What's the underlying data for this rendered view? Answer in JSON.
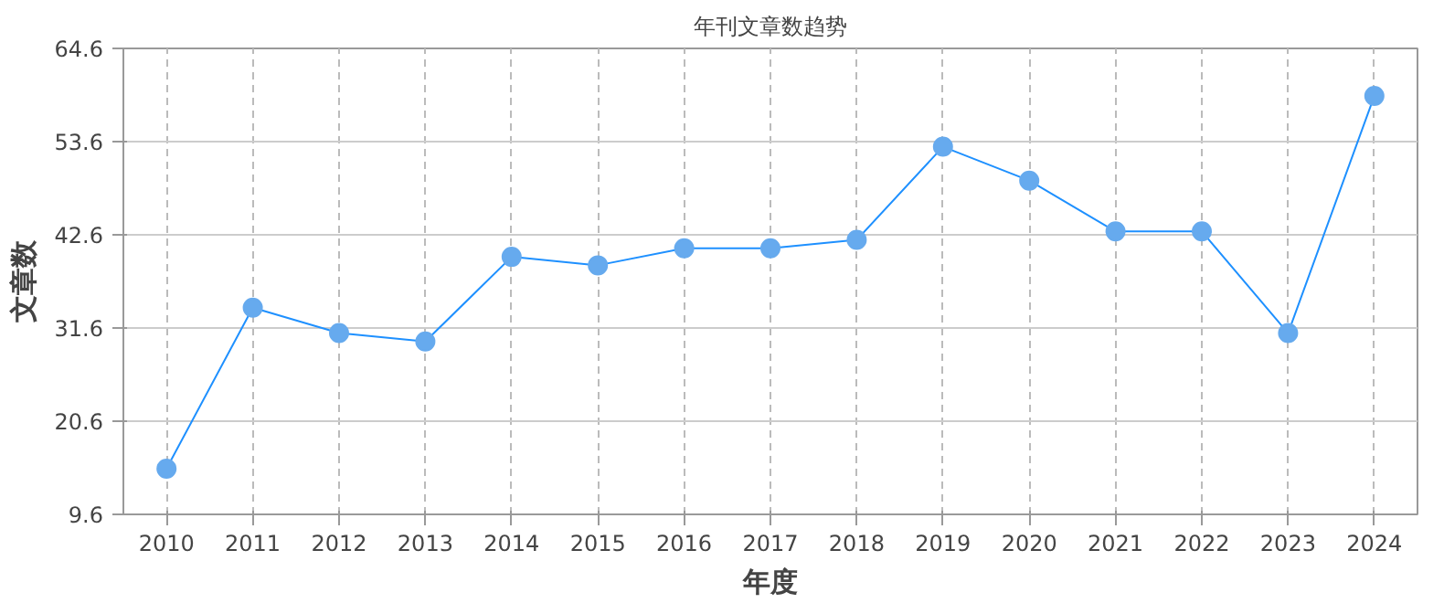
{
  "chart_data": {
    "type": "line",
    "title": "年刊文章数趋势",
    "xlabel": "年度",
    "ylabel": "文章数",
    "categories": [
      "2010",
      "2011",
      "2012",
      "2013",
      "2014",
      "2015",
      "2016",
      "2017",
      "2018",
      "2019",
      "2020",
      "2021",
      "2022",
      "2023",
      "2024"
    ],
    "series": [
      {
        "color": "#1e90ff",
        "values": [
          15,
          34,
          31,
          30,
          40,
          39,
          41,
          41,
          42,
          53,
          49,
          43,
          43,
          31,
          59
        ]
      }
    ],
    "ylim": [
      9.6,
      64.6
    ],
    "yticks": [
      9.6,
      20.6,
      31.6,
      42.6,
      53.6,
      64.6
    ],
    "grid": true,
    "marker": "circle",
    "line_style": "solid"
  }
}
